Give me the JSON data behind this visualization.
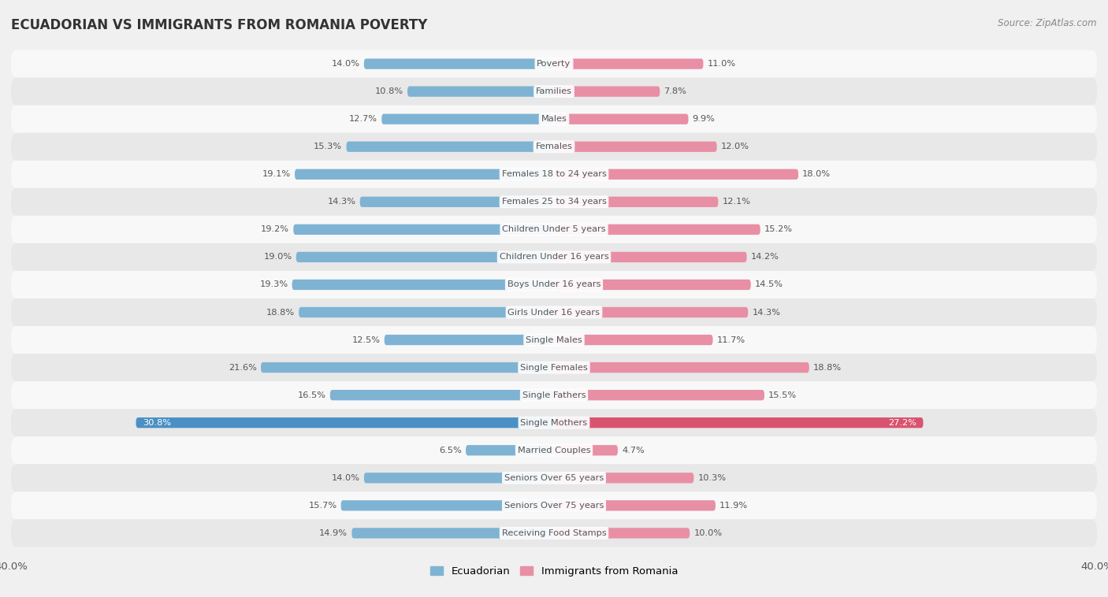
{
  "title": "ECUADORIAN VS IMMIGRANTS FROM ROMANIA POVERTY",
  "source": "Source: ZipAtlas.com",
  "categories": [
    "Poverty",
    "Families",
    "Males",
    "Females",
    "Females 18 to 24 years",
    "Females 25 to 34 years",
    "Children Under 5 years",
    "Children Under 16 years",
    "Boys Under 16 years",
    "Girls Under 16 years",
    "Single Males",
    "Single Females",
    "Single Fathers",
    "Single Mothers",
    "Married Couples",
    "Seniors Over 65 years",
    "Seniors Over 75 years",
    "Receiving Food Stamps"
  ],
  "ecuadorian": [
    14.0,
    10.8,
    12.7,
    15.3,
    19.1,
    14.3,
    19.2,
    19.0,
    19.3,
    18.8,
    12.5,
    21.6,
    16.5,
    30.8,
    6.5,
    14.0,
    15.7,
    14.9
  ],
  "romania": [
    11.0,
    7.8,
    9.9,
    12.0,
    18.0,
    12.1,
    15.2,
    14.2,
    14.5,
    14.3,
    11.7,
    18.8,
    15.5,
    27.2,
    4.7,
    10.3,
    11.9,
    10.0
  ],
  "color_ecuadorian": "#7fb3d3",
  "color_romania": "#e88fa5",
  "color_highlight_ecu": "#4a90c4",
  "color_highlight_rom": "#d9536f",
  "axis_limit": 40.0,
  "background_color": "#f0f0f0",
  "row_bg_light": "#f8f8f8",
  "row_bg_dark": "#e8e8e8",
  "text_color": "#555555",
  "highlight_text_color": "#ffffff"
}
